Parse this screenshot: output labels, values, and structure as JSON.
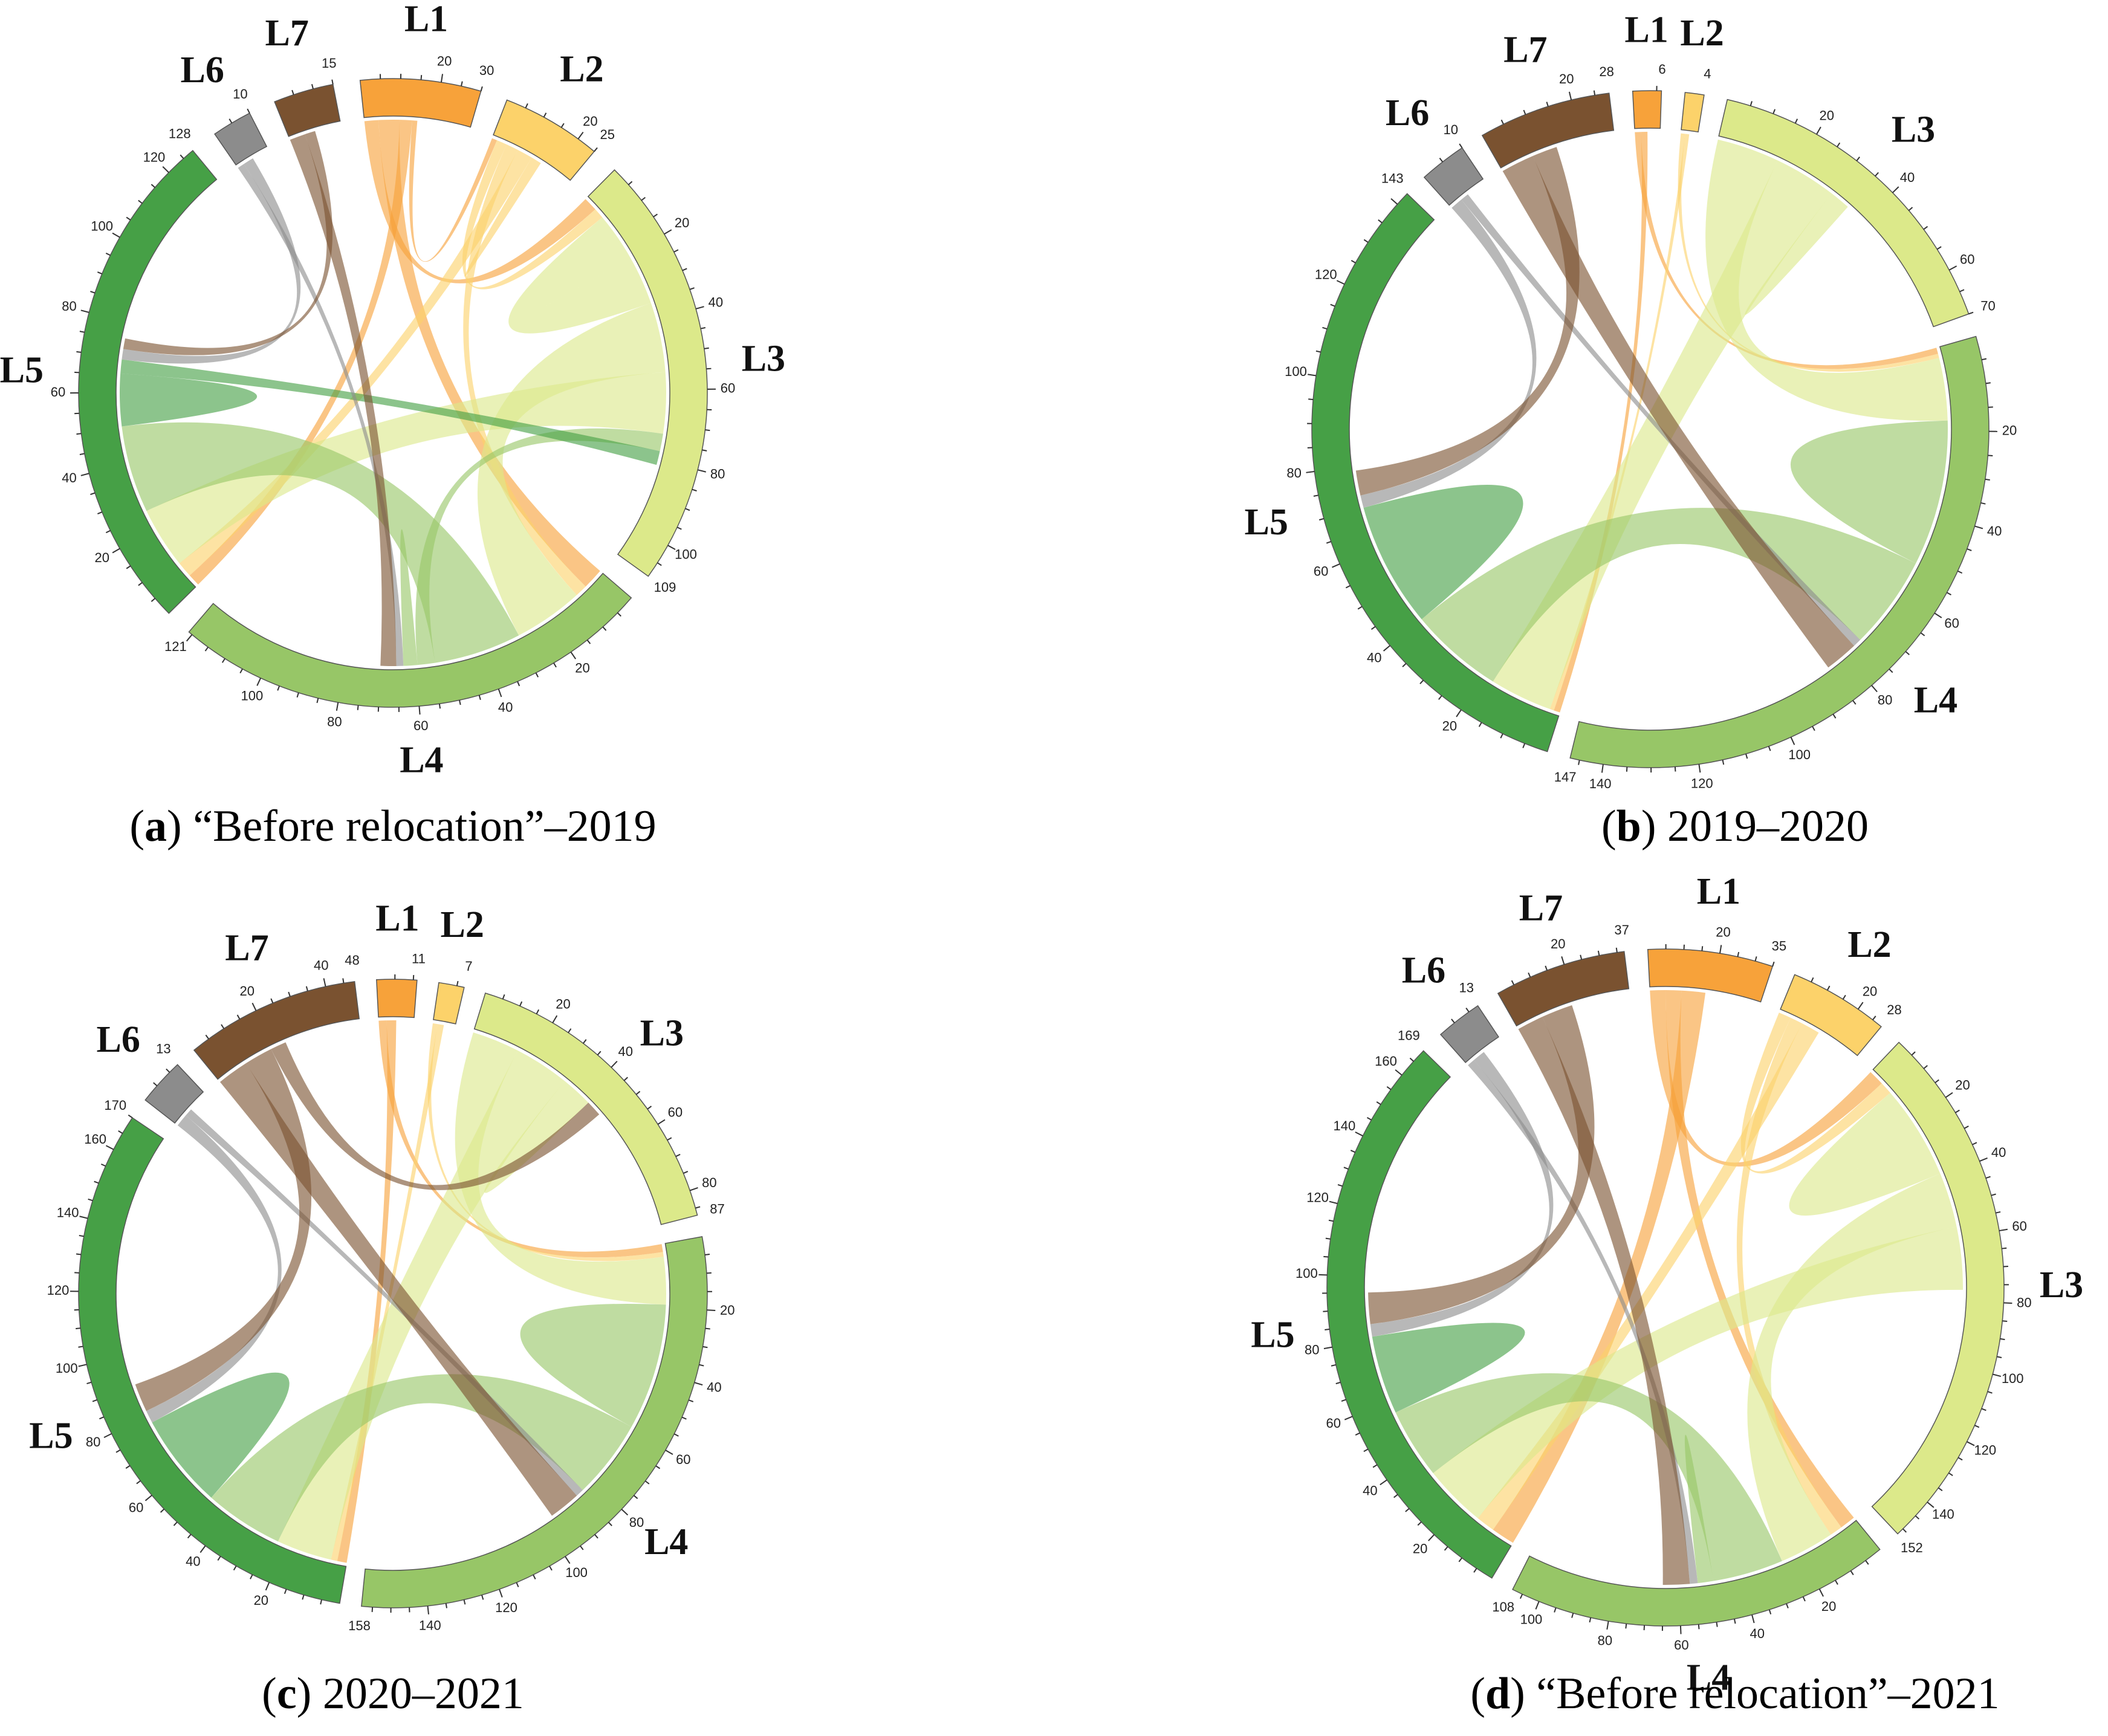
{
  "colors": {
    "L1": "#f7a23a",
    "L2": "#fcd26a",
    "L3": "#dce98a",
    "L4": "#97c667",
    "L5": "#46a046",
    "L6": "#8c8c8c",
    "L7": "#7a5230"
  },
  "chart_data": [
    {
      "type": "chord",
      "id": "a",
      "caption_letter": "a",
      "caption_text": " “Before relocation”–2019",
      "segments": [
        {
          "name": "L1",
          "total": 30,
          "ticks": [
            "20",
            "30"
          ]
        },
        {
          "name": "L2",
          "total": 25,
          "ticks": [
            "20",
            "25"
          ]
        },
        {
          "name": "L3",
          "total": 109,
          "ticks": [
            "20",
            "40",
            "60",
            "80",
            "100",
            "109"
          ]
        },
        {
          "name": "L4",
          "total": 121,
          "ticks": [
            "20",
            "40",
            "60",
            "80",
            "100",
            "121"
          ]
        },
        {
          "name": "L5",
          "total": 128,
          "ticks": [
            "20",
            "40",
            "60",
            "80",
            "100",
            "120",
            "128"
          ]
        },
        {
          "name": "L6",
          "total": 10,
          "ticks": [
            "10"
          ]
        },
        {
          "name": "L7",
          "total": 15,
          "ticks": [
            "15"
          ]
        }
      ],
      "flows": [
        [
          "L1",
          "L3",
          8
        ],
        [
          "L1",
          "L4",
          12
        ],
        [
          "L1",
          "L5",
          7
        ],
        [
          "L1",
          "L2",
          3
        ],
        [
          "L2",
          "L3",
          6
        ],
        [
          "L2",
          "L4",
          7
        ],
        [
          "L2",
          "L5",
          9
        ],
        [
          "L2",
          "L2",
          3
        ],
        [
          "L3",
          "L3",
          28
        ],
        [
          "L3",
          "L4",
          40
        ],
        [
          "L3",
          "L5",
          35
        ],
        [
          "L4",
          "L5",
          50
        ],
        [
          "L4",
          "L3",
          10
        ],
        [
          "L4",
          "L4",
          4
        ],
        [
          "L5",
          "L5",
          15
        ],
        [
          "L5",
          "L3",
          8
        ],
        [
          "L6",
          "L4",
          4
        ],
        [
          "L6",
          "L5",
          6
        ],
        [
          "L7",
          "L4",
          9
        ],
        [
          "L7",
          "L5",
          6
        ]
      ]
    },
    {
      "type": "chord",
      "id": "b",
      "caption_letter": "b",
      "caption_text": " 2019–2020",
      "segments": [
        {
          "name": "L1",
          "total": 6,
          "ticks": [
            "6"
          ]
        },
        {
          "name": "L2",
          "total": 4,
          "ticks": [
            "4"
          ]
        },
        {
          "name": "L3",
          "total": 70,
          "ticks": [
            "20",
            "40",
            "60",
            "70"
          ]
        },
        {
          "name": "L4",
          "total": 147,
          "ticks": [
            "20",
            "40",
            "60",
            "80",
            "100",
            "120",
            "140",
            "147"
          ]
        },
        {
          "name": "L5",
          "total": 143,
          "ticks": [
            "20",
            "40",
            "60",
            "80",
            "100",
            "120",
            "143"
          ]
        },
        {
          "name": "L6",
          "total": 10,
          "ticks": [
            "10"
          ]
        },
        {
          "name": "L7",
          "total": 28,
          "ticks": [
            "20",
            "28"
          ]
        }
      ],
      "flows": [
        [
          "L1",
          "L4",
          3
        ],
        [
          "L1",
          "L5",
          3
        ],
        [
          "L2",
          "L4",
          2
        ],
        [
          "L2",
          "L5",
          2
        ],
        [
          "L3",
          "L4",
          30
        ],
        [
          "L3",
          "L5",
          30
        ],
        [
          "L3",
          "L3",
          5
        ],
        [
          "L4",
          "L4",
          35
        ],
        [
          "L4",
          "L5",
          45
        ],
        [
          "L5",
          "L5",
          30
        ],
        [
          "L6",
          "L5",
          6
        ],
        [
          "L6",
          "L4",
          4
        ],
        [
          "L7",
          "L4",
          16
        ],
        [
          "L7",
          "L5",
          12
        ]
      ]
    },
    {
      "type": "chord",
      "id": "c",
      "caption_letter": "c",
      "caption_text": " 2020–2021",
      "segments": [
        {
          "name": "L1",
          "total": 11,
          "ticks": [
            "11"
          ]
        },
        {
          "name": "L2",
          "total": 7,
          "ticks": [
            "7"
          ]
        },
        {
          "name": "L3",
          "total": 87,
          "ticks": [
            "20",
            "40",
            "60",
            "80",
            "87"
          ]
        },
        {
          "name": "L4",
          "total": 158,
          "ticks": [
            "20",
            "40",
            "60",
            "80",
            "100",
            "120",
            "140",
            "158"
          ]
        },
        {
          "name": "L5",
          "total": 170,
          "ticks": [
            "20",
            "40",
            "60",
            "80",
            "100",
            "120",
            "140",
            "160",
            "170"
          ]
        },
        {
          "name": "L6",
          "total": 13,
          "ticks": [
            "13"
          ]
        },
        {
          "name": "L7",
          "total": 48,
          "ticks": [
            "20",
            "40",
            "48"
          ]
        }
      ],
      "flows": [
        [
          "L1",
          "L4",
          5
        ],
        [
          "L1",
          "L5",
          6
        ],
        [
          "L2",
          "L4",
          3
        ],
        [
          "L2",
          "L5",
          4
        ],
        [
          "L3",
          "L4",
          30
        ],
        [
          "L3",
          "L5",
          35
        ],
        [
          "L3",
          "L3",
          10
        ],
        [
          "L4",
          "L4",
          40
        ],
        [
          "L4",
          "L5",
          50
        ],
        [
          "L5",
          "L5",
          30
        ],
        [
          "L6",
          "L5",
          8
        ],
        [
          "L6",
          "L4",
          5
        ],
        [
          "L7",
          "L4",
          20
        ],
        [
          "L7",
          "L5",
          18
        ],
        [
          "L7",
          "L3",
          10
        ]
      ]
    },
    {
      "type": "chord",
      "id": "d",
      "caption_letter": "d",
      "caption_text": " “Before relocation”–2021",
      "segments": [
        {
          "name": "L1",
          "total": 35,
          "ticks": [
            "20",
            "35"
          ]
        },
        {
          "name": "L2",
          "total": 28,
          "ticks": [
            "20",
            "28"
          ]
        },
        {
          "name": "L3",
          "total": 152,
          "ticks": [
            "20",
            "40",
            "60",
            "80",
            "100",
            "120",
            "140",
            "152"
          ]
        },
        {
          "name": "L4",
          "total": 108,
          "ticks": [
            "20",
            "40",
            "60",
            "80",
            "100",
            "108"
          ]
        },
        {
          "name": "L5",
          "total": 169,
          "ticks": [
            "20",
            "40",
            "60",
            "80",
            "100",
            "120",
            "140",
            "160",
            "169"
          ]
        },
        {
          "name": "L6",
          "total": 13,
          "ticks": [
            "13"
          ]
        },
        {
          "name": "L7",
          "total": 37,
          "ticks": [
            "20",
            "37"
          ]
        }
      ],
      "flows": [
        [
          "L1",
          "L3",
          10
        ],
        [
          "L1",
          "L4",
          10
        ],
        [
          "L1",
          "L5",
          15
        ],
        [
          "L2",
          "L3",
          8
        ],
        [
          "L2",
          "L4",
          8
        ],
        [
          "L2",
          "L5",
          12
        ],
        [
          "L3",
          "L3",
          30
        ],
        [
          "L3",
          "L4",
          35
        ],
        [
          "L3",
          "L5",
          40
        ],
        [
          "L4",
          "L5",
          45
        ],
        [
          "L4",
          "L4",
          5
        ],
        [
          "L5",
          "L5",
          25
        ],
        [
          "L6",
          "L4",
          5
        ],
        [
          "L6",
          "L5",
          8
        ],
        [
          "L7",
          "L4",
          17
        ],
        [
          "L7",
          "L5",
          20
        ]
      ]
    }
  ]
}
